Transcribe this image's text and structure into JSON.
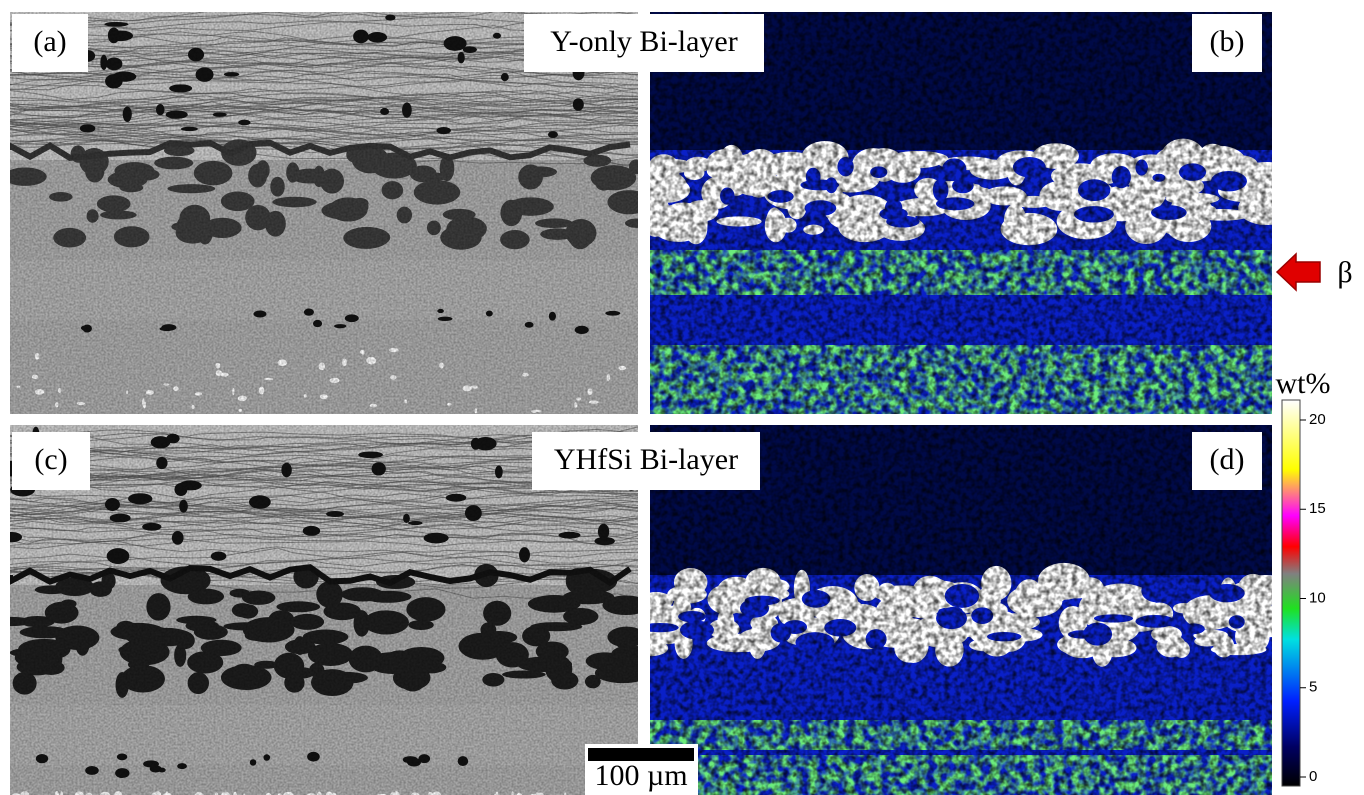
{
  "panels": [
    {
      "label": "(a)"
    },
    {
      "label": "(b)"
    },
    {
      "label": "(c)"
    },
    {
      "label": "(d)"
    }
  ],
  "titles": [
    "Y-only Bi-layer",
    "YHfSi Bi-layer"
  ],
  "arrow_label": "β",
  "colorbar": {
    "unit": "wt%",
    "ticks": [
      0,
      5,
      10,
      15,
      20
    ]
  },
  "scale_bar": "100 µm"
}
